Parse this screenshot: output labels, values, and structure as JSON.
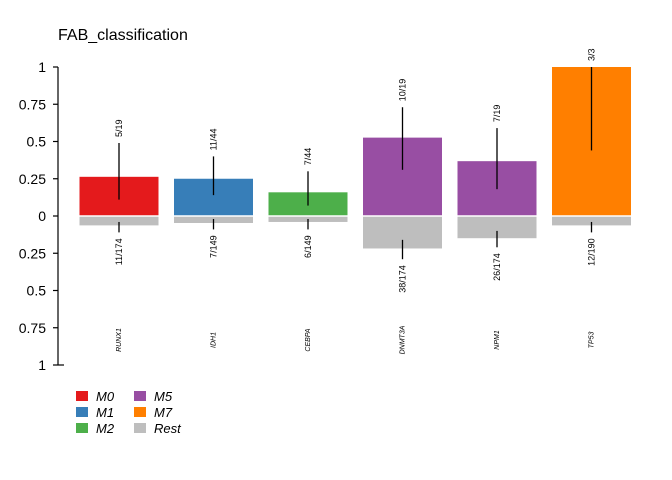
{
  "chart_data": {
    "type": "bar",
    "title": "FAB_classification",
    "ylim": [
      -1,
      1
    ],
    "y_ticks_top": [
      {
        "value": 1,
        "label": "1"
      },
      {
        "value": 0.75,
        "label": "0.75"
      },
      {
        "value": 0.5,
        "label": "0.5"
      },
      {
        "value": 0.25,
        "label": "0.25"
      },
      {
        "value": 0,
        "label": "0"
      }
    ],
    "y_ticks_bottom": [
      {
        "value": -0.25,
        "label": "0.25"
      },
      {
        "value": -0.5,
        "label": "0.5"
      },
      {
        "value": -0.75,
        "label": "0.75"
      },
      {
        "value": -1,
        "label": "1"
      }
    ],
    "categories": [
      "RUNX1",
      "IDH1",
      "CEBPA",
      "DNMT3A",
      "NPM1",
      "TP53"
    ],
    "group_bars": [
      {
        "gene": "RUNX1",
        "group": "M0",
        "value": 0.263,
        "ci": [
          0.11,
          0.49
        ],
        "label": "5/19",
        "color": "#e41a1c"
      },
      {
        "gene": "IDH1",
        "group": "M1",
        "value": 0.25,
        "ci": [
          0.14,
          0.4
        ],
        "label": "11/44",
        "color": "#377eb8"
      },
      {
        "gene": "CEBPA",
        "group": "M2",
        "value": 0.159,
        "ci": [
          0.07,
          0.3
        ],
        "label": "7/44",
        "color": "#4daf4a"
      },
      {
        "gene": "DNMT3A",
        "group": "M5",
        "value": 0.526,
        "ci": [
          0.31,
          0.73
        ],
        "label": "10/19",
        "color": "#984ea3"
      },
      {
        "gene": "NPM1",
        "group": "M5",
        "value": 0.368,
        "ci": [
          0.18,
          0.59
        ],
        "label": "7/19",
        "color": "#984ea3"
      },
      {
        "gene": "TP53",
        "group": "M7",
        "value": 1.0,
        "ci": [
          0.44,
          1.0
        ],
        "label": "3/3",
        "color": "#ff7f00"
      }
    ],
    "rest_bars": [
      {
        "gene": "RUNX1",
        "value": 0.063,
        "ci": [
          0.04,
          0.11
        ],
        "label": "11/174"
      },
      {
        "gene": "IDH1",
        "value": 0.047,
        "ci": [
          0.02,
          0.09
        ],
        "label": "7/149"
      },
      {
        "gene": "CEBPA",
        "value": 0.04,
        "ci": [
          0.02,
          0.09
        ],
        "label": "6/149"
      },
      {
        "gene": "DNMT3A",
        "value": 0.218,
        "ci": [
          0.16,
          0.29
        ],
        "label": "38/174"
      },
      {
        "gene": "NPM1",
        "value": 0.149,
        "ci": [
          0.1,
          0.21
        ],
        "label": "26/174"
      },
      {
        "gene": "TP53",
        "value": 0.063,
        "ci": [
          0.04,
          0.11
        ],
        "label": "12/190"
      }
    ],
    "rest_color": "#bebebe",
    "legend": {
      "placement": "bottom-left",
      "entries": [
        {
          "label": "M0",
          "color": "#e41a1c"
        },
        {
          "label": "M1",
          "color": "#377eb8"
        },
        {
          "label": "M2",
          "color": "#4daf4a"
        },
        {
          "label": "M5",
          "color": "#984ea3"
        },
        {
          "label": "M7",
          "color": "#ff7f00"
        },
        {
          "label": "Rest",
          "color": "#bebebe"
        }
      ]
    },
    "grid": false
  }
}
